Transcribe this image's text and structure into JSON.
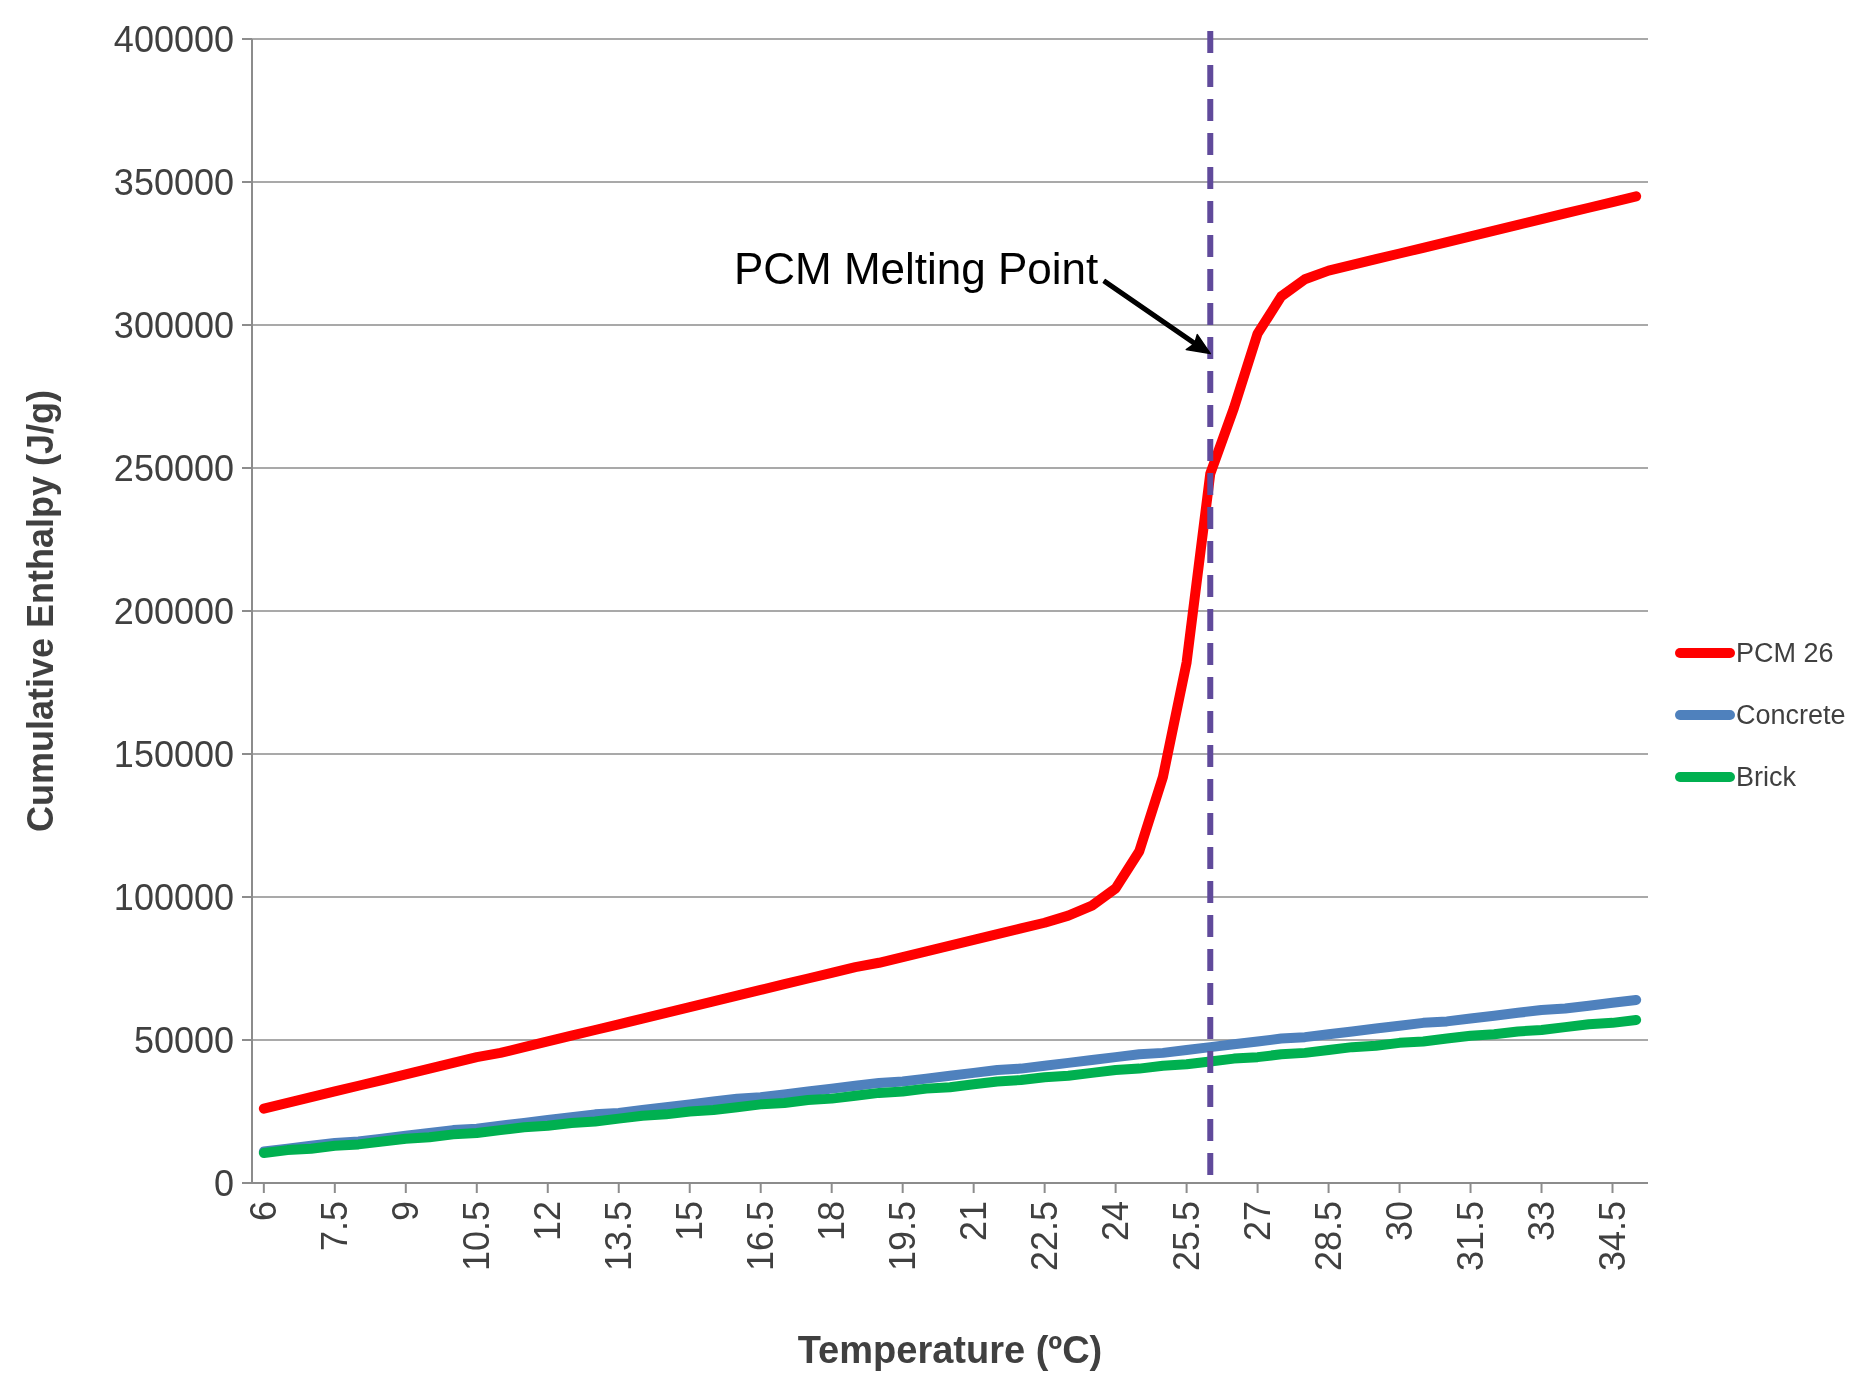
{
  "chart_data": {
    "type": "line",
    "xlabel": "Temperature (ºC)",
    "ylabel": "Cumulative Enthalpy (J/g)",
    "x": [
      6,
      6.5,
      7,
      7.5,
      8,
      8.5,
      9,
      9.5,
      10,
      10.5,
      11,
      11.5,
      12,
      12.5,
      13,
      13.5,
      14,
      14.5,
      15,
      15.5,
      16,
      16.5,
      17,
      17.5,
      18,
      18.5,
      19,
      19.5,
      20,
      20.5,
      21,
      21.5,
      22,
      22.5,
      23,
      23.5,
      24,
      24.5,
      25,
      25.5,
      26,
      26.5,
      27,
      27.5,
      28,
      28.5,
      29,
      29.5,
      30,
      30.5,
      31,
      31.5,
      32,
      32.5,
      33,
      33.5,
      34,
      34.5,
      35
    ],
    "series": [
      {
        "name": "PCM 26",
        "color": "#ff0000",
        "values": [
          26000,
          28000,
          30000,
          32000,
          34000,
          36000,
          38000,
          40000,
          42000,
          44000,
          45500,
          47500,
          49500,
          51500,
          53500,
          55500,
          57500,
          59500,
          61500,
          63500,
          65500,
          67500,
          69500,
          71500,
          73500,
          75500,
          77000,
          79000,
          81000,
          83000,
          85000,
          87000,
          89000,
          91000,
          93500,
          97000,
          103000,
          116000,
          142000,
          182000,
          248000,
          271000,
          297000,
          310000,
          316000,
          319000,
          321000,
          323000,
          325000,
          327000,
          329000,
          331000,
          333000,
          335000,
          337000,
          339000,
          341000,
          343000,
          345000
        ]
      },
      {
        "name": "Concrete",
        "color": "#4f81bd",
        "values": [
          11000,
          12000,
          13000,
          14000,
          14500,
          15500,
          16500,
          17500,
          18500,
          19000,
          20000,
          21000,
          22000,
          23000,
          24000,
          24500,
          25500,
          26500,
          27500,
          28500,
          29500,
          30000,
          31000,
          32000,
          33000,
          34000,
          35000,
          35500,
          36500,
          37500,
          38500,
          39500,
          40000,
          41000,
          42000,
          43000,
          44000,
          45000,
          45500,
          46500,
          47500,
          48500,
          49500,
          50500,
          51000,
          52000,
          53000,
          54000,
          55000,
          56000,
          56500,
          57500,
          58500,
          59500,
          60500,
          61000,
          62000,
          63000,
          64000
        ]
      },
      {
        "name": "Brick",
        "color": "#00b050",
        "values": [
          10500,
          11500,
          12000,
          13000,
          13500,
          14500,
          15500,
          16000,
          17000,
          17500,
          18500,
          19500,
          20000,
          21000,
          21500,
          22500,
          23500,
          24000,
          25000,
          25500,
          26500,
          27500,
          28000,
          29000,
          29500,
          30500,
          31500,
          32000,
          33000,
          33500,
          34500,
          35500,
          36000,
          37000,
          37500,
          38500,
          39500,
          40000,
          41000,
          41500,
          42500,
          43500,
          44000,
          45000,
          45500,
          46500,
          47500,
          48000,
          49000,
          49500,
          50500,
          51500,
          52000,
          53000,
          53500,
          54500,
          55500,
          56000,
          57000
        ]
      }
    ],
    "xlim": [
      5.75,
      35.25
    ],
    "xticks": [
      6,
      7.5,
      9,
      10.5,
      12,
      13.5,
      15,
      16.5,
      18,
      19.5,
      21,
      22.5,
      24,
      25.5,
      27,
      28.5,
      30,
      31.5,
      33,
      34.5
    ],
    "ylim": [
      0,
      400000
    ],
    "yticks": [
      0,
      50000,
      100000,
      150000,
      200000,
      250000,
      300000,
      350000,
      400000
    ],
    "grid": "y",
    "legend": "right",
    "line_style": "solid",
    "ref_lines": [
      {
        "axis": "x",
        "value": 26,
        "color": "#604a9b",
        "line_style": "dashed"
      }
    ],
    "annotations": [
      {
        "text": "PCM Melting Point",
        "x": 26,
        "y": 290000
      }
    ]
  }
}
